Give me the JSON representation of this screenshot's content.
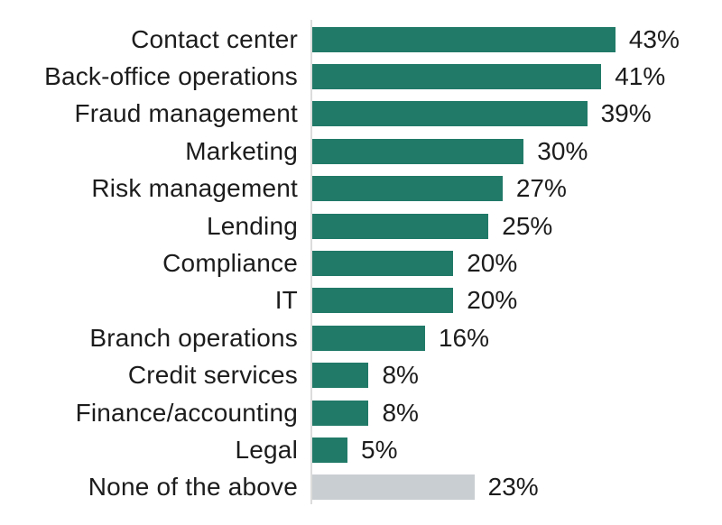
{
  "chart_data": {
    "type": "bar",
    "orientation": "horizontal",
    "categories": [
      "Contact center",
      "Back-office operations",
      "Fraud management",
      "Marketing",
      "Risk management",
      "Lending",
      "Compliance",
      "IT",
      "Branch operations",
      "Credit services",
      "Finance/accounting",
      "Legal",
      "None of the above"
    ],
    "values": [
      43,
      41,
      39,
      30,
      27,
      25,
      20,
      20,
      16,
      8,
      8,
      5,
      23
    ],
    "value_labels": [
      "43%",
      "41%",
      "39%",
      "30%",
      "27%",
      "25%",
      "20%",
      "20%",
      "16%",
      "8%",
      "8%",
      "5%",
      "23%"
    ],
    "bar_colors": [
      "#217a68",
      "#217a68",
      "#217a68",
      "#217a68",
      "#217a68",
      "#217a68",
      "#217a68",
      "#217a68",
      "#217a68",
      "#217a68",
      "#217a68",
      "#217a68",
      "#c9ced2"
    ],
    "xlim": [
      0,
      45
    ],
    "grid": false,
    "legend": "none",
    "axis_line_color": "#dcdcdc",
    "text_color": "#1c1c1c"
  }
}
